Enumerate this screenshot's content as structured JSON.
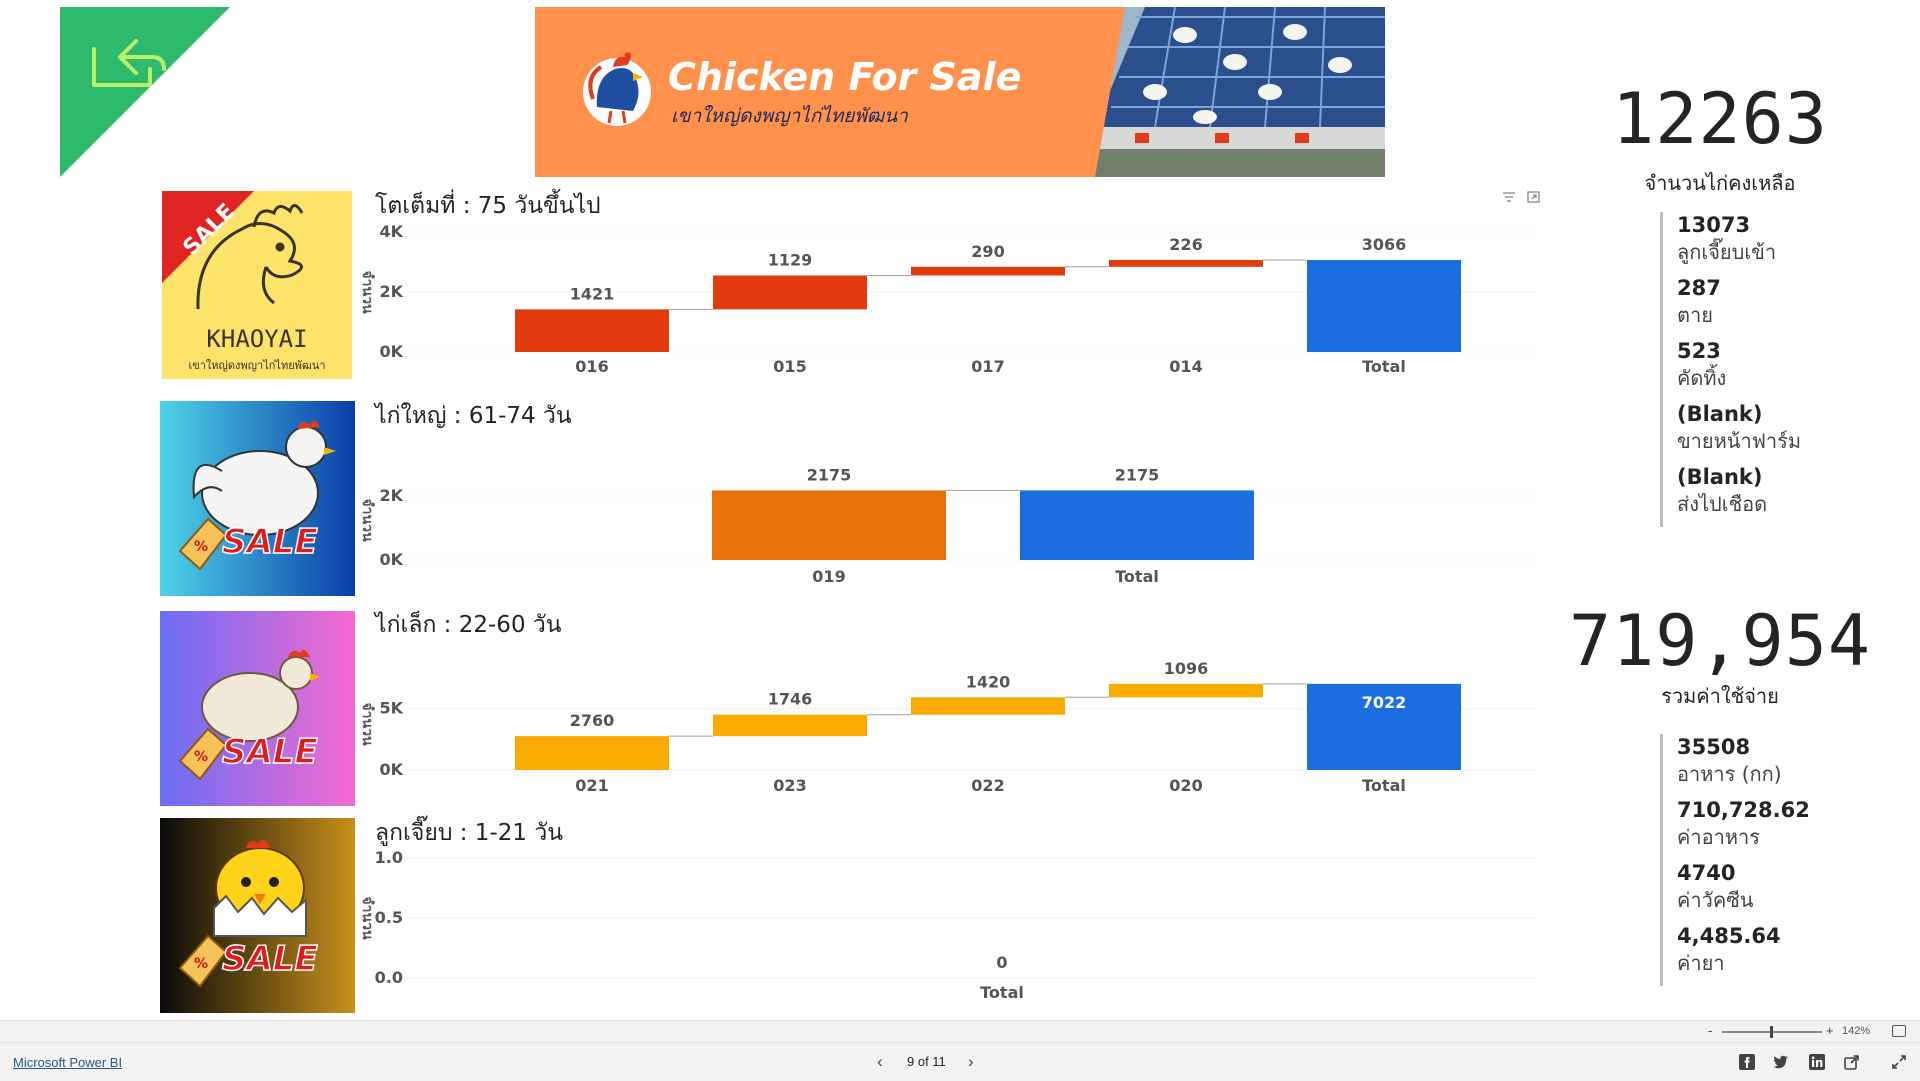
{
  "banner": {
    "title": "Chicken For Sale",
    "subtitle": "เขาใหญ่ดงพญาไก่ไทยพัฒนา"
  },
  "logo_thumb": {
    "sale_text": "SALE",
    "brand": "KHAOYAI",
    "subtitle": "เขาใหญ่ดงพญาไก่ไทยพัฒนา"
  },
  "thumb_sale_text": "SALE",
  "y_axis_label": "จำนวน",
  "charts": [
    {
      "title": "โตเต็มที่ : 75 วันขึ้นไป",
      "ticks": [
        "4K",
        "2K",
        "0K"
      ],
      "chart_data": {
        "type": "waterfall",
        "categories": [
          "016",
          "015",
          "017",
          "014",
          "Total"
        ],
        "values": [
          1421,
          1129,
          290,
          226,
          3066
        ],
        "ylim": [
          0,
          4000
        ],
        "color": "#e13a0c",
        "total_color": "#1a6ede"
      }
    },
    {
      "title": "ไก่ใหญ่ : 61-74 วัน",
      "ticks": [
        "2K",
        "0K"
      ],
      "chart_data": {
        "type": "waterfall",
        "categories": [
          "019",
          "Total"
        ],
        "values": [
          2175,
          2175
        ],
        "ylim": [
          0,
          2500
        ],
        "color": "#e8710a",
        "total_color": "#1a6ede"
      }
    },
    {
      "title": "ไก่เล็ก : 22-60 วัน",
      "ticks": [
        "5K",
        "0K"
      ],
      "chart_data": {
        "type": "waterfall",
        "categories": [
          "021",
          "023",
          "022",
          "020",
          "Total"
        ],
        "values": [
          2760,
          1746,
          1420,
          1096,
          7022
        ],
        "ylim": [
          0,
          7500
        ],
        "color": "#f9ab00",
        "total_color": "#1a6ede"
      }
    },
    {
      "title": "ลูกเจี๊ยบ : 1-21 วัน",
      "ticks": [
        "1.0",
        "0.5",
        "0.0"
      ],
      "chart_data": {
        "type": "waterfall",
        "categories": [
          "Total"
        ],
        "values": [
          0
        ],
        "ylim": [
          0,
          1
        ],
        "color": "#1a6ede",
        "total_color": "#1a6ede"
      }
    }
  ],
  "kpi_remaining": {
    "value": "12263",
    "label": "จำนวนไก่คงเหลือ",
    "items": [
      {
        "value": "13073",
        "label": "ลูกเจี๊ยบเข้า"
      },
      {
        "value": "287",
        "label": "ตาย"
      },
      {
        "value": "523",
        "label": "คัดทิ้ง"
      },
      {
        "value": "(Blank)",
        "label": "ขายหน้าฟาร์ม"
      },
      {
        "value": "(Blank)",
        "label": "ส่งไปเชือด"
      }
    ]
  },
  "kpi_cost": {
    "value": "719,954",
    "label": "รวมค่าใช้จ่าย",
    "items": [
      {
        "value": "35508",
        "label": "อาหาร (กก)"
      },
      {
        "value": "710,728.62",
        "label": "ค่าอาหาร"
      },
      {
        "value": "4740",
        "label": "ค่าวัคซีน"
      },
      {
        "value": "4,485.64",
        "label": "ค่ายา"
      }
    ]
  },
  "zoom": {
    "level": "142%",
    "minus": "-",
    "plus": "+"
  },
  "footer": {
    "brand": "Microsoft Power BI",
    "page": "9 of 11"
  },
  "colors": {
    "accent_green": "#2dba6c",
    "banner_orange": "#ff914d"
  }
}
